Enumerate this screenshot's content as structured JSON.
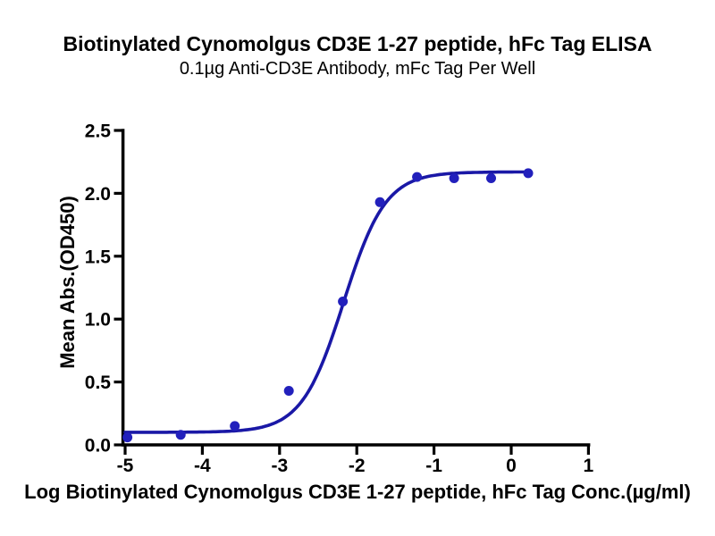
{
  "chart_data": {
    "type": "scatter",
    "title": "Biotinylated Cynomolgus CD3E 1-27 peptide, hFc Tag ELISA",
    "subtitle": "0.1µg Anti-CD3E Antibody, mFc Tag Per Well",
    "xlabel": "Log Biotinylated Cynomolgus CD3E 1-27 peptide, hFc Tag Conc.(µg/ml)",
    "ylabel": "Mean Abs.(OD450)",
    "xlim": [
      -5,
      1
    ],
    "ylim": [
      0,
      2.5
    ],
    "x_ticks": [
      -5,
      -4,
      -3,
      -2,
      -1,
      0,
      1
    ],
    "y_ticks": [
      0.0,
      0.5,
      1.0,
      1.5,
      2.0,
      2.5
    ],
    "y_tick_labels": [
      "0.0",
      "0.5",
      "1.0",
      "1.5",
      "2.0",
      "2.5"
    ],
    "grid": false,
    "legend": false,
    "series": [
      {
        "name": "Biotinylated Cynomolgus CD3E 1-27 peptide, hFc Tag",
        "marker": "circle",
        "x": [
          -4.97,
          -4.28,
          -3.58,
          -2.88,
          -2.18,
          -1.7,
          -1.22,
          -0.74,
          -0.26,
          0.22
        ],
        "y": [
          0.06,
          0.08,
          0.15,
          0.43,
          1.14,
          1.93,
          2.13,
          2.12,
          2.12,
          2.16
        ]
      }
    ],
    "fit_curve": {
      "model": "4PL sigmoid",
      "bottom": 0.1,
      "top": 2.17,
      "logEC50": -2.17,
      "hillslope": 1.6,
      "x_start": -5.0,
      "x_end": 0.22
    },
    "colors": {
      "curve": "#1a18a6",
      "points": "#2220bc",
      "axis": "#000000",
      "text": "#000000"
    }
  }
}
